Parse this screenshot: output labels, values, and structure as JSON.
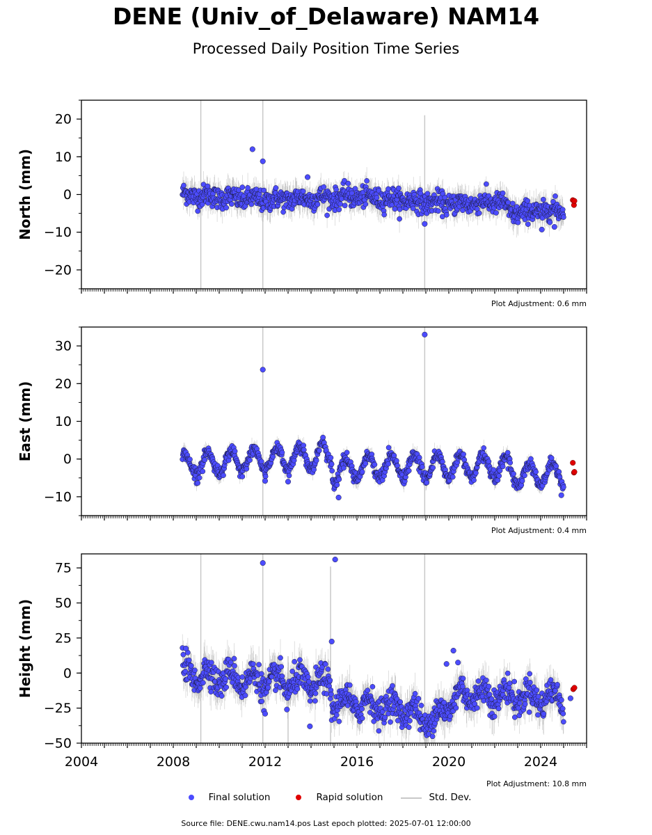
{
  "header": {
    "title": "DENE (Univ_of_Delaware) NAM14",
    "subtitle": "Processed Daily Position Time Series"
  },
  "legend": {
    "final_label": "Final solution",
    "rapid_label": "Rapid solution",
    "stddev_label": "Std. Dev."
  },
  "footer": {
    "source": "Source file: DENE.cwu.nam14.pos  Last epoch plotted: 2025-07-01 12:00:00"
  },
  "colors": {
    "final": "#4c4cff",
    "rapid": "#e00000",
    "stddev": "#c8c8c8",
    "final_edge": "#1a1a3a"
  },
  "chart_data": [
    {
      "type": "scatter",
      "ylabel": "North (mm)",
      "adjustment": "Plot Adjustment: 0.6 mm",
      "xlim": [
        2004,
        2026
      ],
      "ylim": [
        -25,
        25
      ],
      "yticks": [
        20,
        10,
        0,
        -10,
        -20
      ],
      "xticks": [
        2004,
        2008,
        2012,
        2016,
        2020,
        2024
      ],
      "show_xtick_labels": false,
      "grid": false,
      "x_start": 2008.4,
      "x_end": 2025.0,
      "trend_segments": [
        [
          2008.4,
          0.0
        ],
        [
          2012.0,
          -1.5
        ],
        [
          2016.0,
          -0.5
        ],
        [
          2020.0,
          -2.5
        ],
        [
          2022.4,
          -2.0
        ],
        [
          2022.6,
          -5.0
        ],
        [
          2025.0,
          -4.0
        ]
      ],
      "annual_amplitude": 0.5,
      "scatter_noise": 1.4,
      "outliers": [
        [
          2011.45,
          12
        ],
        [
          2011.9,
          8.8
        ],
        [
          2013.85,
          4.6
        ],
        [
          2018.95,
          -7.8
        ],
        [
          2024.05,
          -9.3
        ],
        [
          2024.6,
          -8.6
        ]
      ],
      "rapid": [
        [
          2025.4,
          -1.5
        ],
        [
          2025.45,
          -2.8
        ],
        [
          2025.47,
          -1.7
        ]
      ],
      "spikes": [
        [
          2009.2,
          25,
          -25
        ],
        [
          2011.9,
          25,
          -25
        ],
        [
          2018.95,
          21,
          -25
        ]
      ]
    },
    {
      "type": "scatter",
      "ylabel": "East (mm)",
      "adjustment": "Plot Adjustment: 0.4 mm",
      "xlim": [
        2004,
        2026
      ],
      "ylim": [
        -15,
        35
      ],
      "yticks": [
        30,
        20,
        10,
        0,
        -10
      ],
      "xticks": [
        2004,
        2008,
        2012,
        2016,
        2020,
        2024
      ],
      "show_xtick_labels": false,
      "grid": false,
      "x_start": 2008.4,
      "x_end": 2025.0,
      "trend_segments": [
        [
          2008.4,
          -1.5
        ],
        [
          2014.9,
          1.0
        ],
        [
          2014.95,
          -4.0
        ],
        [
          2016.0,
          -2.0
        ],
        [
          2020.0,
          -2.0
        ],
        [
          2022.5,
          -2.0
        ],
        [
          2022.8,
          -4.0
        ],
        [
          2025.0,
          -4.0
        ]
      ],
      "annual_amplitude": 3.0,
      "scatter_noise": 0.8,
      "outliers": [
        [
          2011.9,
          23.7
        ],
        [
          2018.95,
          33
        ],
        [
          2015.2,
          -10.2
        ],
        [
          2024.9,
          -9.6
        ],
        [
          2012.0,
          -5.8
        ],
        [
          2013.0,
          -6.0
        ]
      ],
      "rapid": [
        [
          2025.4,
          -1.0
        ],
        [
          2025.45,
          -3.6
        ],
        [
          2025.47,
          -3.4
        ]
      ],
      "spikes": [
        [
          2011.9,
          35,
          -15
        ],
        [
          2018.95,
          35,
          -15
        ]
      ]
    },
    {
      "type": "scatter",
      "ylabel": "Height (mm)",
      "adjustment": "Plot Adjustment: 10.8 mm",
      "xlim": [
        2004,
        2026
      ],
      "ylim": [
        -50,
        85
      ],
      "yticks": [
        75,
        50,
        25,
        0,
        -25,
        -50
      ],
      "xticks": [
        2004,
        2008,
        2012,
        2016,
        2020,
        2024
      ],
      "show_xtick_labels": true,
      "grid": false,
      "x_start": 2008.4,
      "x_end": 2025.0,
      "trend_segments": [
        [
          2008.4,
          0.0
        ],
        [
          2012.0,
          -6.0
        ],
        [
          2014.8,
          -8.0
        ],
        [
          2014.9,
          -20.0
        ],
        [
          2018.0,
          -25.0
        ],
        [
          2019.2,
          -35.0
        ],
        [
          2020.5,
          -15.0
        ],
        [
          2025.0,
          -18.0
        ]
      ],
      "annual_amplitude": 6.0,
      "scatter_noise": 5.0,
      "outliers": [
        [
          2011.9,
          78.5
        ],
        [
          2014.9,
          22.5
        ],
        [
          2015.05,
          81
        ],
        [
          2020.2,
          16
        ],
        [
          2020.4,
          7.5
        ],
        [
          2019.9,
          6.5
        ],
        [
          2008.55,
          17.5
        ],
        [
          2013.95,
          -38
        ],
        [
          2012.95,
          -26
        ],
        [
          2011.95,
          -27
        ],
        [
          2012.0,
          -29
        ],
        [
          2025.3,
          -18
        ]
      ],
      "rapid": [
        [
          2025.42,
          -11.5
        ],
        [
          2025.47,
          -10.5
        ]
      ],
      "spikes": [
        [
          2009.2,
          85,
          -50
        ],
        [
          2011.9,
          85,
          -50
        ],
        [
          2014.85,
          76,
          -50
        ],
        [
          2018.95,
          85,
          -50
        ],
        [
          2013.0,
          12,
          -50
        ]
      ]
    }
  ]
}
